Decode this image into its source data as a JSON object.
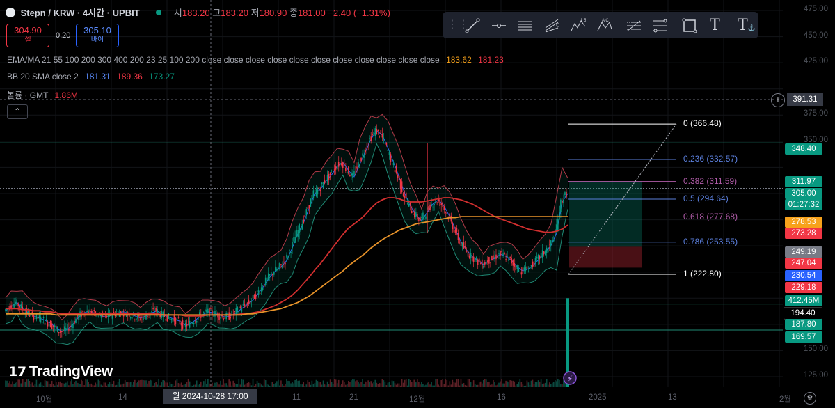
{
  "header": {
    "symbol": "Stepn / KRW · 4시간 · UPBIT",
    "open_label": "시",
    "open": "183.20",
    "high_label": "고",
    "high": "183.20",
    "low_label": "저",
    "low": "180.90",
    "close_label": "종",
    "close": "181.00",
    "change": "−2.40 (−1.31%)",
    "sell_price": "304.90",
    "sell_label": "셀",
    "spread": "0.20",
    "buy_price": "305.10",
    "buy_label": "바이"
  },
  "indicators": {
    "ema_label": "EMA/MA 21 55 100 200 300 400 200 23 25 100 200 close close close close close close close close close close close",
    "ema_v1": "183.62",
    "ema_v2": "181.23",
    "bb_label": "BB 20 SMA close 2",
    "bb_v1": "181.31",
    "bb_v2": "189.36",
    "bb_v3": "173.27",
    "vol_label": "볼륨 · GMT",
    "vol_value": "1.86M"
  },
  "crosshair_price": "391.31",
  "crosshair_time": "월 2024-10-28  17:00",
  "price_tags": [
    {
      "v": "348.40",
      "bg": "#089981",
      "y": 206
    },
    {
      "v": "311.97",
      "bg": "#089981",
      "y": 253
    },
    {
      "v": "305.00",
      "bg": "#089981",
      "y": 270
    },
    {
      "v": "01:27:32",
      "bg": "#089981",
      "y": 286
    },
    {
      "v": "278.53",
      "bg": "#f7a21b",
      "y": 311
    },
    {
      "v": "273.28",
      "bg": "#f23645",
      "y": 327
    },
    {
      "v": "249.19",
      "bg": "#787b86",
      "y": 354
    },
    {
      "v": "247.04",
      "bg": "#f23645",
      "y": 370
    },
    {
      "v": "230.54",
      "bg": "#2962ff",
      "y": 388
    },
    {
      "v": "229.18",
      "bg": "#f23645",
      "y": 405
    },
    {
      "v": "412.45M",
      "bg": "#089981",
      "y": 424
    },
    {
      "v": "194.40",
      "bg": "#000000",
      "y": 441
    },
    {
      "v": "187.80",
      "bg": "#089981",
      "y": 458
    },
    {
      "v": "169.57",
      "bg": "#089981",
      "y": 476
    }
  ],
  "axis_labels": [
    "475.00",
    "450.00",
    "425.00",
    "375.00",
    "350.00",
    "150.00",
    "125.00"
  ],
  "x_labels": [
    "10월",
    "14",
    "11",
    "21",
    "12월",
    "16",
    "2025",
    "13",
    "2월"
  ],
  "fib_levels": [
    {
      "label": "0 (366.48)",
      "color": "#ffffff"
    },
    {
      "label": "0.236 (332.57)",
      "color": "#5b7fdc"
    },
    {
      "label": "0.382 (311.59)",
      "color": "#b05ca8"
    },
    {
      "label": "0.5 (294.64)",
      "color": "#5b7fdc"
    },
    {
      "label": "0.618 (277.68)",
      "color": "#b05ca8"
    },
    {
      "label": "0.786 (253.55)",
      "color": "#5b7fdc"
    },
    {
      "label": "1 (222.80)",
      "color": "#ffffff"
    }
  ],
  "logo_text": "TradingView",
  "chart_data": {
    "type": "candlestick",
    "series": [
      {
        "name": "price",
        "values": [
          188,
          192,
          196,
          191,
          186,
          183,
          181,
          179,
          176,
          172,
          168,
          170,
          175,
          182,
          186,
          188,
          185,
          183,
          182,
          184,
          186,
          187,
          185,
          183,
          181,
          183,
          186,
          188,
          184,
          182,
          180,
          178,
          174,
          176,
          180,
          184,
          187,
          186,
          184,
          182,
          183,
          186,
          190,
          194,
          198,
          205,
          212,
          220,
          226,
          230,
          236,
          248,
          262,
          272,
          286,
          300,
          304,
          312,
          318,
          326,
          330,
          322,
          316,
          328,
          340,
          352,
          360,
          356,
          344,
          330,
          316,
          300,
          288,
          280,
          274,
          282,
          290,
          294,
          288,
          278,
          266,
          254,
          246,
          240,
          236,
          232,
          236,
          238,
          242,
          240,
          236,
          230,
          226,
          228,
          232,
          238,
          244,
          250,
          262,
          292,
          300
        ]
      },
      {
        "name": "ema_red",
        "values": [
          190,
          190,
          190,
          189,
          189,
          188,
          188,
          187,
          187,
          186,
          185,
          185,
          185,
          185,
          185,
          185,
          185,
          185,
          185,
          185,
          185,
          185,
          185,
          185,
          185,
          185,
          185,
          185,
          184,
          184,
          184,
          184,
          183,
          183,
          183,
          183,
          184,
          184,
          184,
          184,
          184,
          184,
          185,
          185,
          186,
          187,
          189,
          191,
          193,
          196,
          199,
          203,
          208,
          214,
          220,
          227,
          233,
          240,
          247,
          254,
          261,
          267,
          271,
          275,
          280,
          286,
          291,
          294,
          296,
          296,
          295,
          293,
          292,
          292,
          292,
          293,
          294,
          295,
          296,
          296,
          295,
          294,
          292,
          290,
          287,
          284,
          281,
          278,
          276,
          274,
          272,
          270,
          268,
          266,
          265,
          264,
          263,
          263,
          264,
          266,
          270
        ]
      },
      {
        "name": "ma_orange",
        "values": [
          185,
          185,
          185,
          185,
          185,
          185,
          185,
          185,
          185,
          184,
          184,
          184,
          184,
          184,
          184,
          184,
          184,
          184,
          184,
          184,
          184,
          184,
          184,
          184,
          184,
          184,
          184,
          184,
          184,
          184,
          184,
          184,
          184,
          184,
          184,
          184,
          184,
          184,
          184,
          184,
          184,
          184,
          184,
          185,
          185,
          186,
          187,
          188,
          189,
          190,
          192,
          194,
          196,
          199,
          202,
          206,
          210,
          214,
          218,
          222,
          226,
          231,
          235,
          239,
          243,
          248,
          252,
          256,
          259,
          262,
          265,
          267,
          269,
          271,
          272,
          273,
          274,
          275,
          276,
          277,
          277,
          278,
          278,
          278,
          278,
          278,
          278,
          278,
          278,
          278,
          278,
          278,
          278,
          278,
          278,
          278,
          278,
          278,
          278,
          278,
          278
        ]
      }
    ],
    "ylim": [
      115,
      485
    ],
    "fib": {
      "start": 222.8,
      "end": 366.48
    },
    "position": {
      "entry": 249.19,
      "target": 311.97,
      "stop": 229.18
    },
    "hlines": [
      348.4,
      305.0,
      194.4,
      169.57,
      391.31
    ]
  }
}
